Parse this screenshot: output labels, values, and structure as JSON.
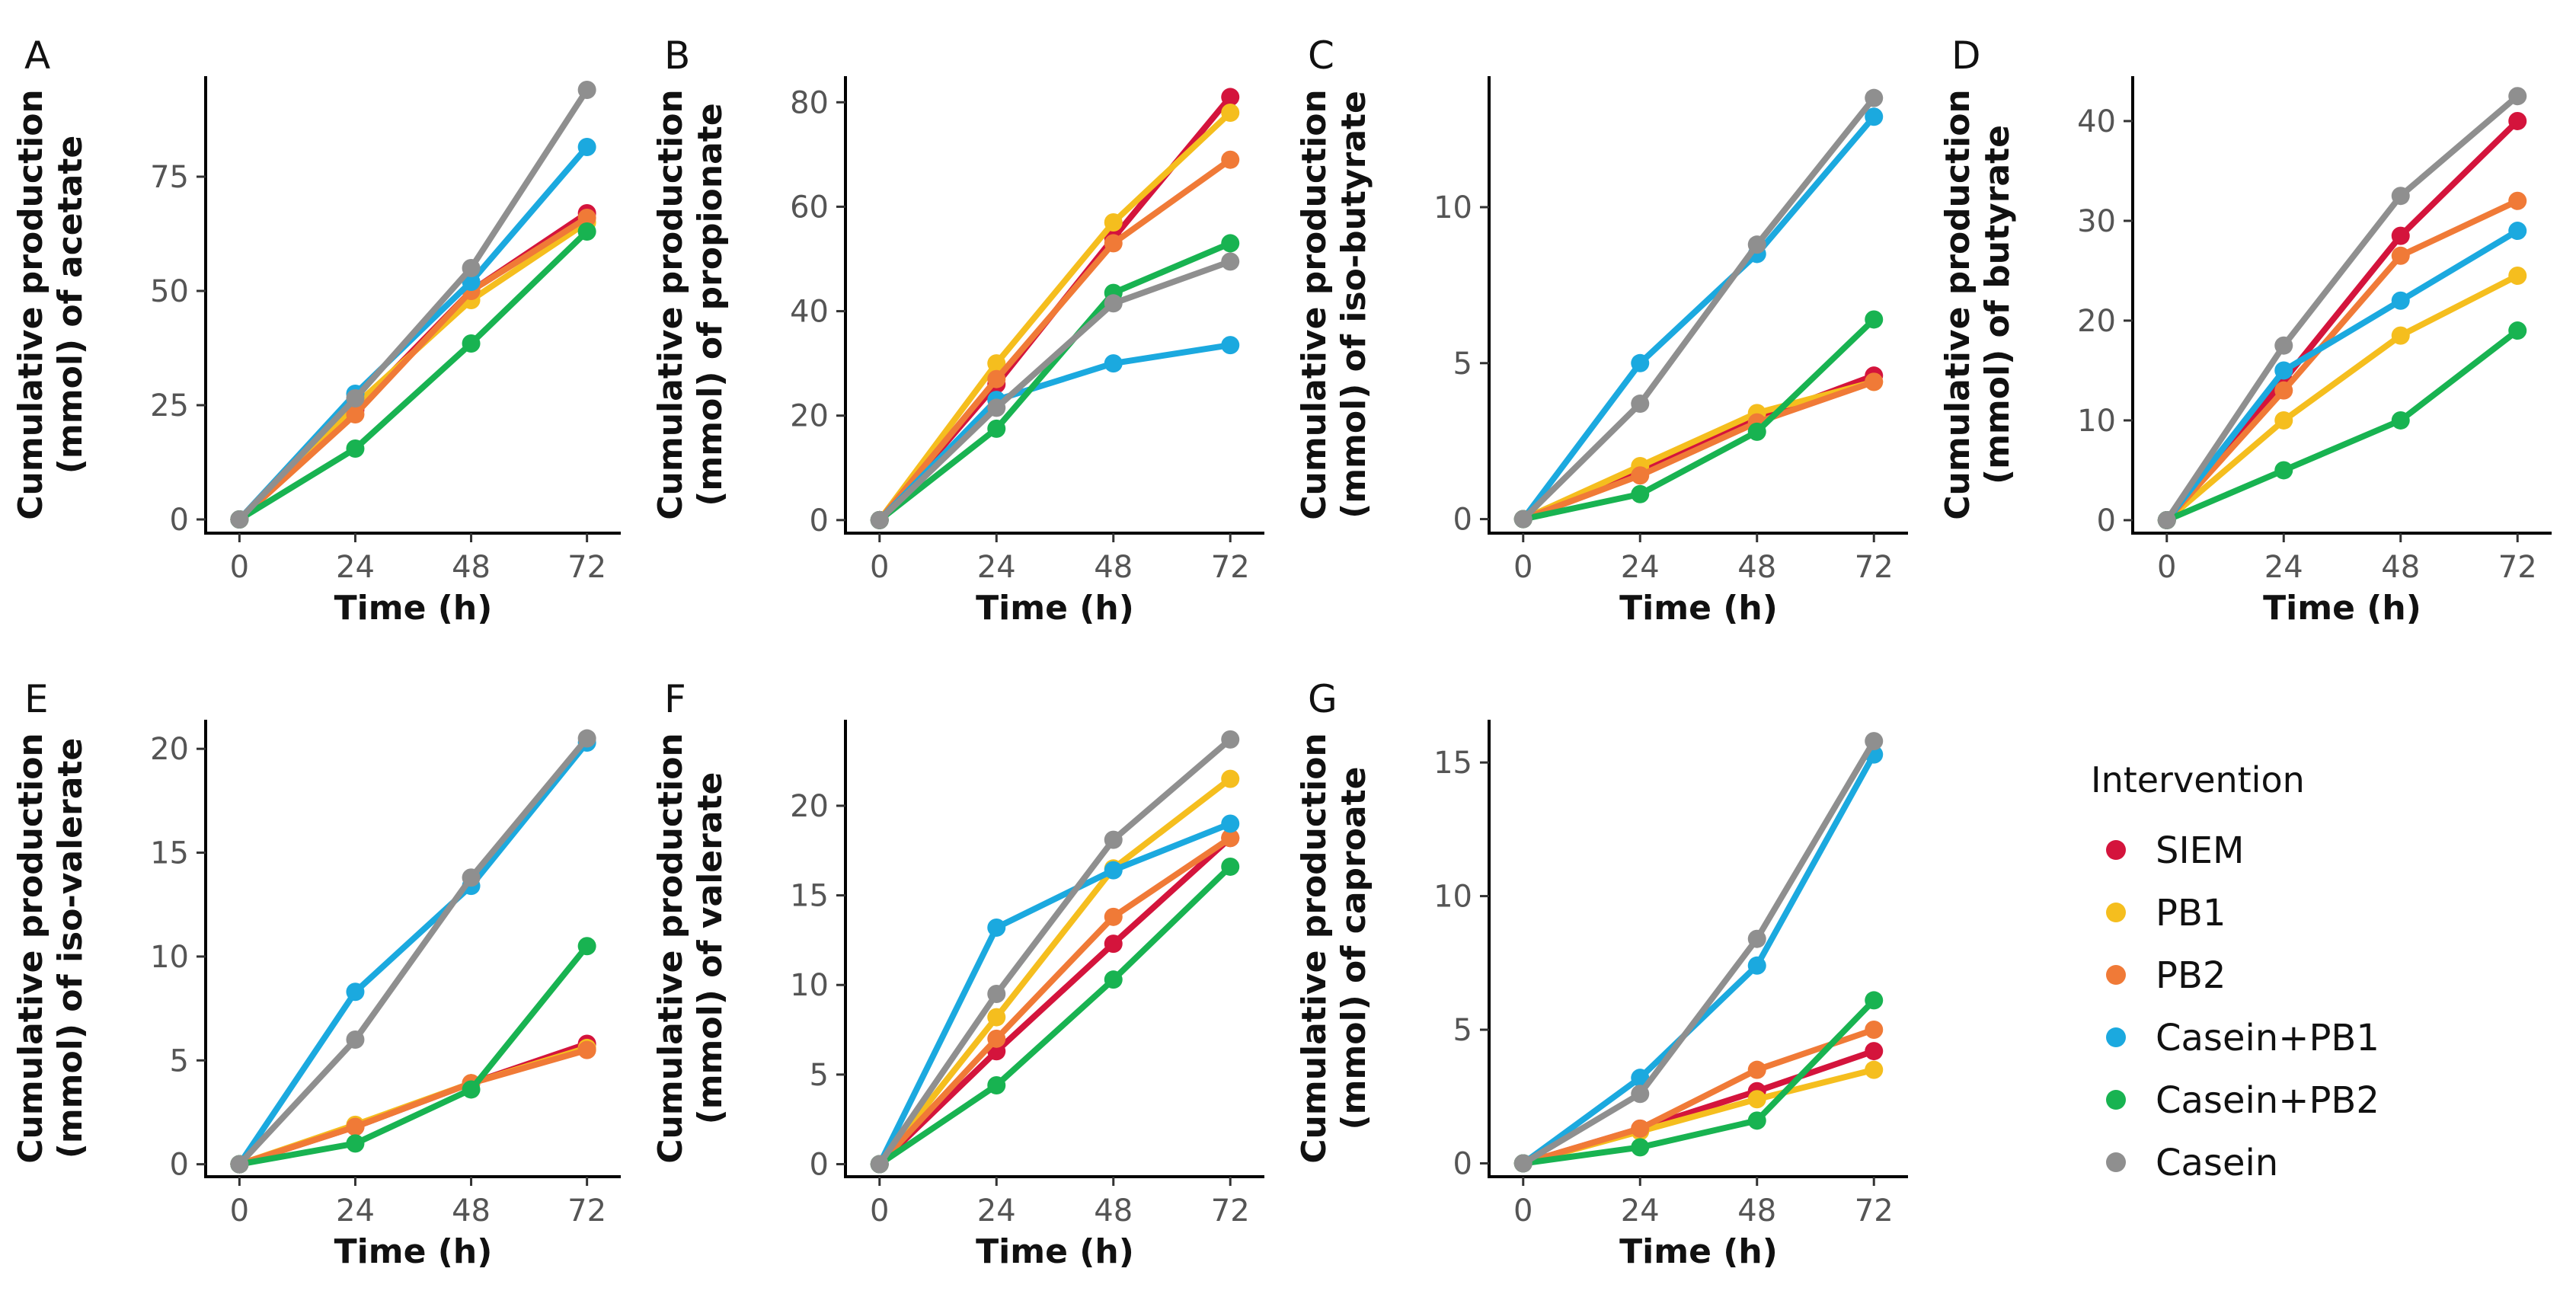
{
  "legend": {
    "title": "Intervention",
    "entries": [
      {
        "name": "SIEM",
        "color": "#D4143C"
      },
      {
        "name": "PB1",
        "color": "#F5BE1E"
      },
      {
        "name": "PB2",
        "color": "#F07A37"
      },
      {
        "name": "Casein+PB1",
        "color": "#1BA9DF"
      },
      {
        "name": "Casein+PB2",
        "color": "#18B351"
      },
      {
        "name": "Casein",
        "color": "#8F8F8F"
      }
    ]
  },
  "chart_data": [
    {
      "type": "line",
      "panel": "A",
      "title": "",
      "xlabel": "Time (h)",
      "ylabel_line1": "Cumulative production",
      "ylabel_line2": "(mmol) of acetate",
      "x": [
        0,
        24,
        48,
        72
      ],
      "xticks": [
        0,
        24,
        48,
        72
      ],
      "yticks": [
        0,
        25,
        50,
        75
      ],
      "ylim": [
        -3,
        97
      ],
      "series": [
        {
          "name": "SIEM",
          "values": [
            0,
            24,
            50,
            67
          ]
        },
        {
          "name": "PB1",
          "values": [
            0,
            25,
            48,
            65
          ]
        },
        {
          "name": "PB2",
          "values": [
            0,
            23,
            50,
            66
          ]
        },
        {
          "name": "Casein+PB1",
          "values": [
            0,
            27.5,
            52,
            81.5
          ]
        },
        {
          "name": "Casein+PB2",
          "values": [
            0,
            15.5,
            38.5,
            63
          ]
        },
        {
          "name": "Casein",
          "values": [
            0,
            26.5,
            55,
            94
          ]
        }
      ]
    },
    {
      "type": "line",
      "panel": "B",
      "title": "",
      "xlabel": "Time (h)",
      "ylabel_line1": "Cumulative production",
      "ylabel_line2": "(mmol) of propionate",
      "x": [
        0,
        24,
        48,
        72
      ],
      "xticks": [
        0,
        24,
        48,
        72
      ],
      "yticks": [
        0,
        20,
        40,
        60,
        80
      ],
      "ylim": [
        -2.5,
        85
      ],
      "series": [
        {
          "name": "SIEM",
          "values": [
            0,
            26,
            54,
            81
          ]
        },
        {
          "name": "PB1",
          "values": [
            0,
            30,
            57,
            78
          ]
        },
        {
          "name": "PB2",
          "values": [
            0,
            27,
            53,
            69
          ]
        },
        {
          "name": "Casein+PB1",
          "values": [
            0,
            23,
            30,
            33.5
          ]
        },
        {
          "name": "Casein+PB2",
          "values": [
            0,
            17.5,
            43.5,
            53
          ]
        },
        {
          "name": "Casein",
          "values": [
            0,
            21.5,
            41.5,
            49.5
          ]
        }
      ]
    },
    {
      "type": "line",
      "panel": "C",
      "title": "",
      "xlabel": "Time (h)",
      "ylabel_line1": "Cumulative production",
      "ylabel_line2": "(mmol) of iso-butyrate",
      "x": [
        0,
        24,
        48,
        72
      ],
      "xticks": [
        0,
        24,
        48,
        72
      ],
      "yticks": [
        0,
        5,
        10
      ],
      "ylim": [
        -0.45,
        14.2
      ],
      "series": [
        {
          "name": "SIEM",
          "values": [
            0,
            1.5,
            3.2,
            4.6
          ]
        },
        {
          "name": "PB1",
          "values": [
            0,
            1.7,
            3.4,
            4.4
          ]
        },
        {
          "name": "PB2",
          "values": [
            0,
            1.4,
            3.1,
            4.4
          ]
        },
        {
          "name": "Casein+PB1",
          "values": [
            0,
            5,
            8.5,
            12.9
          ]
        },
        {
          "name": "Casein+PB2",
          "values": [
            0,
            0.8,
            2.8,
            6.4
          ]
        },
        {
          "name": "Casein",
          "values": [
            0,
            3.7,
            8.8,
            13.5
          ]
        }
      ]
    },
    {
      "type": "line",
      "panel": "D",
      "title": "",
      "xlabel": "Time (h)",
      "ylabel_line1": "Cumulative production",
      "ylabel_line2": "(mmol) of butyrate",
      "x": [
        0,
        24,
        48,
        72
      ],
      "xticks": [
        0,
        24,
        48,
        72
      ],
      "yticks": [
        0,
        10,
        20,
        30,
        40
      ],
      "ylim": [
        -1.3,
        44.5
      ],
      "series": [
        {
          "name": "SIEM",
          "values": [
            0,
            14,
            28.5,
            40
          ]
        },
        {
          "name": "PB1",
          "values": [
            0,
            10,
            18.5,
            24.5
          ]
        },
        {
          "name": "PB2",
          "values": [
            0,
            13,
            26.5,
            32
          ]
        },
        {
          "name": "Casein+PB1",
          "values": [
            0,
            15,
            22,
            29
          ]
        },
        {
          "name": "Casein+PB2",
          "values": [
            0,
            5,
            10,
            19
          ]
        },
        {
          "name": "Casein",
          "values": [
            0,
            17.5,
            32.5,
            42.5
          ]
        }
      ]
    },
    {
      "type": "line",
      "panel": "E",
      "title": "",
      "xlabel": "Time (h)",
      "ylabel_line1": "Cumulative production",
      "ylabel_line2": "(mmol) of iso-valerate",
      "x": [
        0,
        24,
        48,
        72
      ],
      "xticks": [
        0,
        24,
        48,
        72
      ],
      "yticks": [
        0,
        5,
        10,
        15,
        20
      ],
      "ylim": [
        -0.6,
        21.4
      ],
      "series": [
        {
          "name": "SIEM",
          "values": [
            0,
            1.8,
            3.9,
            5.8
          ]
        },
        {
          "name": "PB1",
          "values": [
            0,
            1.9,
            3.9,
            5.6
          ]
        },
        {
          "name": "PB2",
          "values": [
            0,
            1.8,
            3.9,
            5.5
          ]
        },
        {
          "name": "Casein+PB1",
          "values": [
            0,
            8.3,
            13.4,
            20.3
          ]
        },
        {
          "name": "Casein+PB2",
          "values": [
            0,
            1,
            3.6,
            10.5
          ]
        },
        {
          "name": "Casein",
          "values": [
            0,
            6,
            13.8,
            20.5
          ]
        }
      ]
    },
    {
      "type": "line",
      "panel": "F",
      "title": "",
      "xlabel": "Time (h)",
      "ylabel_line1": "Cumulative production",
      "ylabel_line2": "(mmol) of valerate",
      "x": [
        0,
        24,
        48,
        72
      ],
      "xticks": [
        0,
        24,
        48,
        72
      ],
      "yticks": [
        0,
        5,
        10,
        15,
        20
      ],
      "ylim": [
        -0.7,
        24.8
      ],
      "series": [
        {
          "name": "SIEM",
          "values": [
            0,
            6.3,
            12.3,
            18.2
          ]
        },
        {
          "name": "PB1",
          "values": [
            0,
            8.2,
            16.5,
            21.5
          ]
        },
        {
          "name": "PB2",
          "values": [
            0,
            7,
            13.8,
            18.2
          ]
        },
        {
          "name": "Casein+PB1",
          "values": [
            0,
            13.2,
            16.4,
            19
          ]
        },
        {
          "name": "Casein+PB2",
          "values": [
            0,
            4.4,
            10.3,
            16.6
          ]
        },
        {
          "name": "Casein",
          "values": [
            0,
            9.5,
            18.1,
            23.7
          ]
        }
      ]
    },
    {
      "type": "line",
      "panel": "G",
      "title": "",
      "xlabel": "Time (h)",
      "ylabel_line1": "Cumulative production",
      "ylabel_line2": "(mmol) of caproate",
      "x": [
        0,
        24,
        48,
        72
      ],
      "xticks": [
        0,
        24,
        48,
        72
      ],
      "yticks": [
        0,
        5,
        10,
        15
      ],
      "ylim": [
        -0.5,
        16.6
      ],
      "series": [
        {
          "name": "SIEM",
          "values": [
            0,
            1.3,
            2.7,
            4.2
          ]
        },
        {
          "name": "PB1",
          "values": [
            0,
            1.2,
            2.4,
            3.5
          ]
        },
        {
          "name": "PB2",
          "values": [
            0,
            1.3,
            3.5,
            5
          ]
        },
        {
          "name": "Casein+PB1",
          "values": [
            0,
            3.2,
            7.4,
            15.3
          ]
        },
        {
          "name": "Casein+PB2",
          "values": [
            0,
            0.6,
            1.6,
            6.1
          ]
        },
        {
          "name": "Casein",
          "values": [
            0,
            2.6,
            8.4,
            15.8
          ]
        }
      ]
    }
  ]
}
